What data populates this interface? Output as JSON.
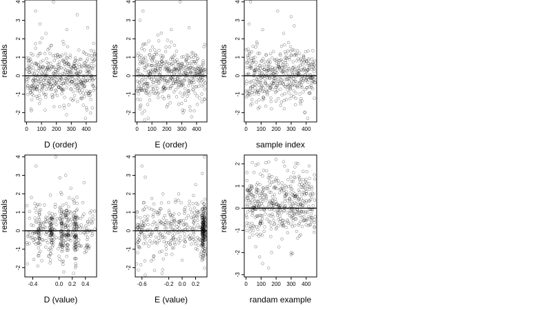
{
  "chart_data": [
    {
      "type": "scatter",
      "xlabel": "D (order)",
      "ylabel": "residuals",
      "xlim": [
        -12,
        470
      ],
      "ylim": [
        -2.5,
        4.1
      ],
      "xticks": [
        0,
        100,
        200,
        300,
        400
      ],
      "xtick_labels": [
        "0",
        "100",
        "200",
        "300",
        "400"
      ],
      "yticks": [
        -2,
        -1,
        0,
        1,
        2,
        3,
        4
      ],
      "ytick_labels": [
        "-2",
        "-1",
        "0",
        "1",
        "2",
        "3",
        "4"
      ],
      "hline": 0,
      "seed": 11,
      "x_mode": "index",
      "n": 460,
      "x_range": [
        0,
        459
      ],
      "grid": false,
      "points": [
        [
          60,
          3.5
        ],
        [
          180,
          4.0
        ],
        [
          340,
          3.3
        ],
        [
          410,
          2.6
        ],
        [
          90,
          2.8
        ],
        [
          130,
          2.3
        ],
        [
          270,
          2.5
        ],
        [
          30,
          -1.8
        ],
        [
          395,
          -2.3
        ],
        [
          250,
          -1.6
        ]
      ]
    },
    {
      "type": "scatter",
      "xlabel": "E (order)",
      "ylabel": "residuals",
      "xlim": [
        -12,
        470
      ],
      "ylim": [
        -2.5,
        4.1
      ],
      "xticks": [
        0,
        100,
        200,
        300,
        400
      ],
      "xtick_labels": [
        "0",
        "100",
        "200",
        "300",
        "400"
      ],
      "yticks": [
        -2,
        -1,
        0,
        1,
        2,
        3,
        4
      ],
      "ytick_labels": [
        "-2",
        "-1",
        "0",
        "1",
        "2",
        "3",
        "4"
      ],
      "hline": 0,
      "seed": 23,
      "x_mode": "index",
      "n": 460,
      "x_range": [
        0,
        459
      ],
      "grid": false,
      "points": [
        [
          40,
          3.5
        ],
        [
          290,
          4.0
        ],
        [
          20,
          3.0
        ],
        [
          230,
          2.5
        ],
        [
          350,
          2.6
        ],
        [
          140,
          2.2
        ],
        [
          20,
          -1.8
        ],
        [
          50,
          -2.4
        ],
        [
          75,
          -2.3
        ],
        [
          300,
          -1.5
        ]
      ]
    },
    {
      "type": "scatter",
      "xlabel": "sample index",
      "ylabel": "residuals",
      "xlim": [
        -12,
        470
      ],
      "ylim": [
        -2.5,
        4.1
      ],
      "xticks": [
        0,
        100,
        200,
        300,
        400
      ],
      "xtick_labels": [
        "0",
        "100",
        "200",
        "300",
        "400"
      ],
      "yticks": [
        -2,
        -1,
        0,
        1,
        2,
        3,
        4
      ],
      "ytick_labels": [
        "-2",
        "-1",
        "0",
        "1",
        "2",
        "3",
        "4"
      ],
      "hline": 0,
      "seed": 37,
      "x_mode": "index",
      "n": 460,
      "x_range": [
        0,
        459
      ],
      "grid": false,
      "points": [
        [
          30,
          4.0
        ],
        [
          210,
          3.5
        ],
        [
          300,
          3.2
        ],
        [
          20,
          2.8
        ],
        [
          320,
          2.7
        ],
        [
          110,
          2.5
        ],
        [
          250,
          2.3
        ],
        [
          90,
          -1.7
        ],
        [
          360,
          -1.4
        ],
        [
          410,
          -2.3
        ]
      ]
    },
    {
      "type": "scatter",
      "xlabel": "D (value)",
      "ylabel": "residuals",
      "xlim": [
        -0.52,
        0.57
      ],
      "ylim": [
        -2.5,
        4.1
      ],
      "xticks": [
        -0.4,
        0.0,
        0.2,
        0.4
      ],
      "xtick_labels": [
        "-0.4",
        "0.0",
        "0.2",
        "0.4"
      ],
      "yticks": [
        -2,
        -1,
        0,
        1,
        2,
        3,
        4
      ],
      "ytick_labels": [
        "-2",
        "-1",
        "0",
        "1",
        "2",
        "3",
        "4"
      ],
      "hline": 0,
      "seed": 51,
      "x_mode": "banded",
      "n": 460,
      "x_range": [
        -0.5,
        0.55
      ],
      "x_bands": [
        -0.3,
        -0.12,
        0.05,
        0.12,
        0.25
      ],
      "grid": false,
      "points": [
        [
          -0.35,
          3.5
        ],
        [
          -0.05,
          4.0
        ],
        [
          0.1,
          3.0
        ],
        [
          0.38,
          2.6
        ],
        [
          0.18,
          2.3
        ],
        [
          -0.42,
          1.8
        ],
        [
          -0.48,
          -1.8
        ],
        [
          0.22,
          -2.3
        ],
        [
          0.25,
          -1.5
        ],
        [
          -0.15,
          -1.4
        ]
      ]
    },
    {
      "type": "scatter",
      "xlabel": "E (value)",
      "ylabel": "residuals",
      "xlim": [
        -0.7,
        0.37
      ],
      "ylim": [
        -2.5,
        4.1
      ],
      "xticks": [
        -0.6,
        -0.2,
        0.0,
        0.2
      ],
      "xtick_labels": [
        "-0.6",
        "-0.2",
        "0.0",
        "0.2"
      ],
      "yticks": [
        -2,
        -1,
        0,
        1,
        2,
        3,
        4
      ],
      "ytick_labels": [
        "-2",
        "-1",
        "0",
        "1",
        "2",
        "3",
        "4"
      ],
      "hline": 0,
      "seed": 67,
      "x_mode": "clustered",
      "n": 460,
      "x_range": [
        -0.68,
        0.35
      ],
      "x_cluster": 0.32,
      "grid": false,
      "points": [
        [
          -0.6,
          3.5
        ],
        [
          0.33,
          4.0
        ],
        [
          -0.55,
          2.9
        ],
        [
          0.3,
          3.1
        ],
        [
          0.2,
          2.5
        ],
        [
          -0.68,
          -1.8
        ],
        [
          -0.55,
          -2.4
        ],
        [
          -0.3,
          -2.3
        ],
        [
          0.0,
          -1.6
        ],
        [
          0.28,
          -1.4
        ]
      ]
    },
    {
      "type": "scatter",
      "xlabel": "randam example",
      "ylabel": "residuals",
      "xlim": [
        -12,
        470
      ],
      "ylim": [
        -3.1,
        2.4
      ],
      "xticks": [
        0,
        100,
        200,
        300,
        400
      ],
      "xtick_labels": [
        "0",
        "100",
        "200",
        "300",
        "400"
      ],
      "yticks": [
        -3,
        -2,
        -1,
        0,
        1,
        2
      ],
      "ytick_labels": [
        "-3",
        "-2",
        "-1",
        "0",
        "1",
        "2"
      ],
      "hline": 0,
      "seed": 83,
      "x_mode": "uniform",
      "n": 460,
      "x_range": [
        0,
        459
      ],
      "grid": false,
      "points": [
        [
          150,
          -2.7
        ],
        [
          110,
          -2.5
        ],
        [
          90,
          -2.2
        ],
        [
          170,
          -2.0
        ],
        [
          300,
          -2.1
        ],
        [
          200,
          2.2
        ],
        [
          250,
          2.1
        ],
        [
          80,
          2.0
        ],
        [
          420,
          1.9
        ]
      ]
    }
  ]
}
